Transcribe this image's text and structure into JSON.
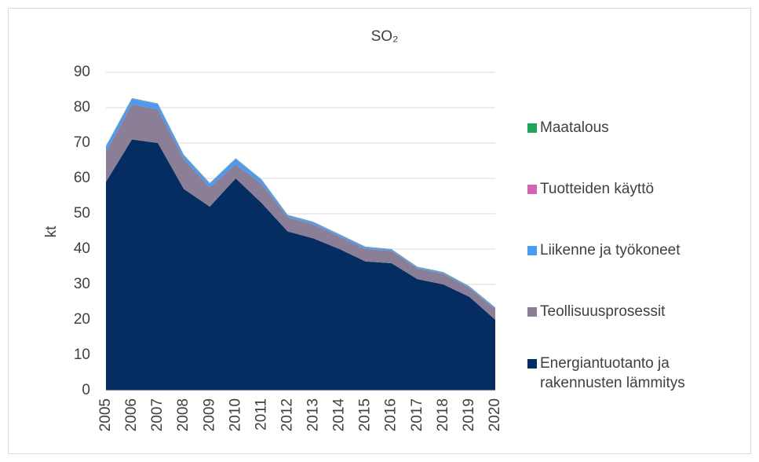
{
  "chart_data": {
    "type": "stacked_area",
    "title": "SO₂",
    "y_label": "kt",
    "categories": [
      "2005",
      "2006",
      "2007",
      "2008",
      "2009",
      "2010",
      "2011",
      "2012",
      "2013",
      "2014",
      "2015",
      "2016",
      "2017",
      "2018",
      "2019",
      "2020"
    ],
    "series": [
      {
        "name": "Energiantuotanto ja rakennusten lämmitys",
        "color": "#052d62",
        "values": [
          59,
          71,
          70,
          57,
          52,
          60,
          53,
          45,
          43,
          40,
          36.5,
          36,
          31.5,
          30,
          26.5,
          20
        ]
      },
      {
        "name": "Teollisuusprosessit",
        "color": "#8b7f98",
        "values": [
          8.5,
          10,
          9.5,
          8.5,
          5.5,
          4,
          5.5,
          4,
          4,
          3.5,
          3.5,
          3.5,
          3,
          3,
          2.5,
          3
        ]
      },
      {
        "name": "Liikenne ja työkoneet",
        "color": "#4a9cf2",
        "values": [
          1.5,
          1.5,
          1.5,
          1,
          1,
          1.5,
          1,
          0.5,
          0.5,
          0.5,
          0.5,
          0.3,
          0.3,
          0.3,
          0.3,
          0.3
        ]
      },
      {
        "name": "Tuotteiden käyttö",
        "color": "#d463b3",
        "values": [
          0.1,
          0.1,
          0.1,
          0.1,
          0.1,
          0.1,
          0.1,
          0.1,
          0.1,
          0.1,
          0.1,
          0.1,
          0.1,
          0.1,
          0.1,
          0.1
        ]
      },
      {
        "name": "Maatalous",
        "color": "#1fa65a",
        "values": [
          0.1,
          0.1,
          0.1,
          0.1,
          0.1,
          0.1,
          0.1,
          0.1,
          0.1,
          0.1,
          0.1,
          0.1,
          0.1,
          0.1,
          0.1,
          0.1
        ]
      }
    ],
    "ylim": [
      0,
      90
    ],
    "yticks": [
      0,
      10,
      20,
      30,
      40,
      50,
      60,
      70,
      80,
      90
    ],
    "grid": true,
    "legend": "right"
  }
}
